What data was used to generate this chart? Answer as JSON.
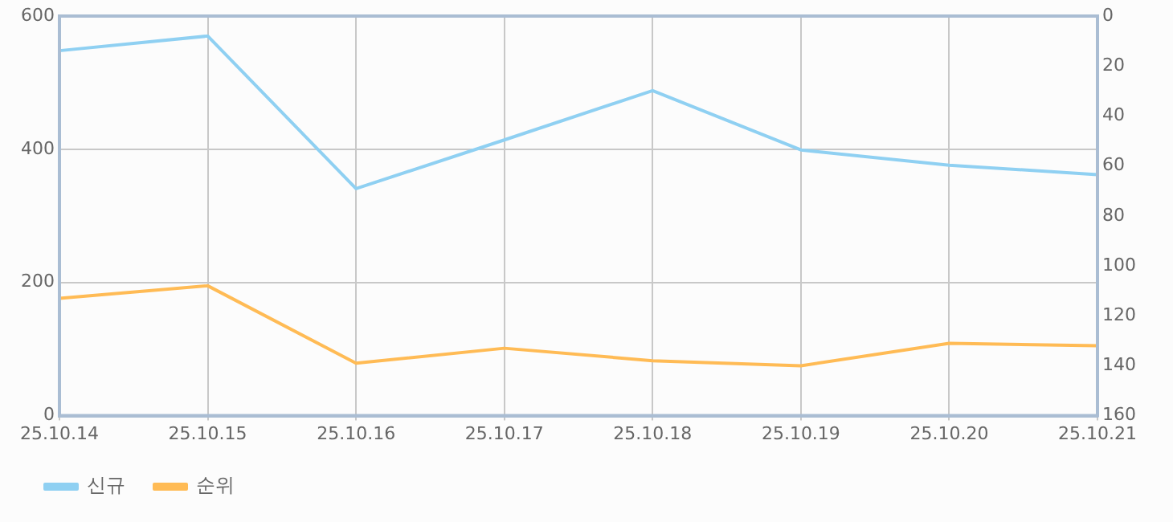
{
  "chart_data": {
    "type": "line",
    "categories": [
      "25.10.14",
      "25.10.15",
      "25.10.16",
      "25.10.17",
      "25.10.18",
      "25.10.19",
      "25.10.20",
      "25.10.21"
    ],
    "series": [
      {
        "name": "신규",
        "color": "#8fd0f2",
        "values": [
          548,
          570,
          341,
          414,
          488,
          399,
          376,
          362
        ]
      },
      {
        "name": "순위",
        "color": "#ffbb55",
        "axis": "y2",
        "values": [
          113,
          108,
          139,
          133,
          138,
          140,
          131,
          132
        ]
      }
    ],
    "ylim": [
      0,
      600
    ],
    "yticks": [
      0,
      200,
      400,
      600
    ],
    "y2lim": [
      160,
      0
    ],
    "y2ticks": [
      0,
      20,
      40,
      60,
      80,
      100,
      120,
      140,
      160
    ],
    "grid": true,
    "legend": "bottom left",
    "marker": "none",
    "line_style": "solid"
  }
}
